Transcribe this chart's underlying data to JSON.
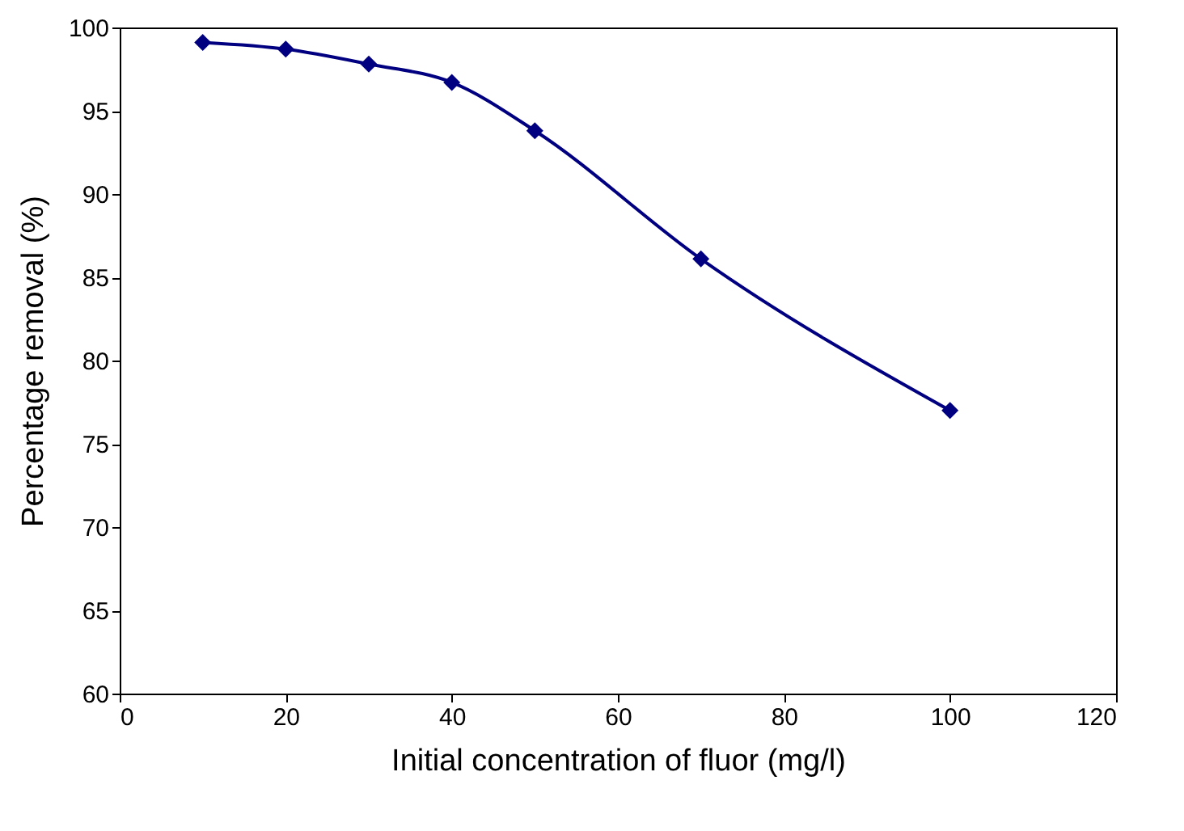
{
  "chart_data": {
    "type": "line",
    "xlabel": "Initial concentration of fluor (mg/l)",
    "ylabel": "Percentage removal (%)",
    "x": [
      10,
      20,
      30,
      40,
      50,
      70,
      100
    ],
    "series": [
      {
        "color": "#000080",
        "values": [
          99.1,
          98.7,
          97.8,
          96.7,
          93.8,
          86.1,
          77.0
        ]
      }
    ],
    "xlim": [
      0,
      120
    ],
    "xticks": [
      0,
      20,
      40,
      60,
      80,
      100,
      120
    ],
    "ylim": [
      60,
      100
    ],
    "yticks": [
      60,
      65,
      70,
      75,
      80,
      85,
      90,
      95,
      100
    ],
    "grid": false,
    "marker": "diamond",
    "line_style": "solid"
  }
}
